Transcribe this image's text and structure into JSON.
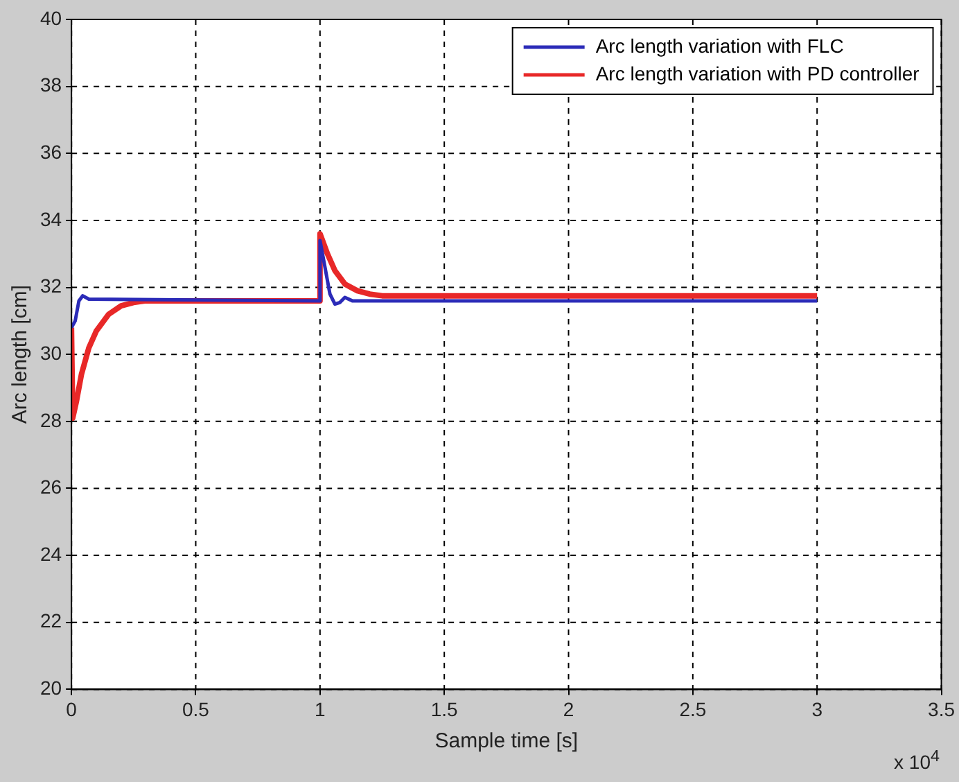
{
  "chart_data": {
    "type": "line",
    "xlabel": "Sample time [s]",
    "ylabel": "Arc length [cm]",
    "xlim": [
      0,
      3.5
    ],
    "ylim": [
      20,
      40
    ],
    "xticks": [
      0,
      0.5,
      1,
      1.5,
      2,
      2.5,
      3,
      3.5
    ],
    "yticks": [
      20,
      22,
      24,
      26,
      28,
      30,
      32,
      34,
      36,
      38,
      40
    ],
    "grid": true,
    "legend": "top right",
    "line_style": "solid",
    "marker": "none",
    "annotations": [
      "x 10$^{4}$"
    ],
    "series": [
      {
        "name": "Arc length variation with FLC",
        "color": "#2b2bb8",
        "x": [
          0,
          0.015,
          0.03,
          0.045,
          0.07,
          0.999,
          1,
          1.02,
          1.04,
          1.06,
          1.08,
          1.1,
          1.13,
          3
        ],
        "values": [
          30.8,
          31.0,
          31.6,
          31.75,
          31.65,
          31.6,
          33.4,
          32.6,
          31.8,
          31.5,
          31.55,
          31.7,
          31.6,
          31.6
        ]
      },
      {
        "name": "Arc length variation with PD controller",
        "color": "#e82828",
        "x": [
          0,
          0.005,
          0.02,
          0.04,
          0.07,
          0.1,
          0.15,
          0.2,
          0.25,
          0.3,
          0.999,
          1,
          1.03,
          1.06,
          1.1,
          1.15,
          1.2,
          1.25,
          3
        ],
        "values": [
          30.8,
          28.1,
          28.6,
          29.4,
          30.2,
          30.7,
          31.2,
          31.45,
          31.55,
          31.6,
          31.6,
          33.6,
          33.0,
          32.5,
          32.1,
          31.9,
          31.8,
          31.75,
          31.75
        ]
      }
    ]
  }
}
